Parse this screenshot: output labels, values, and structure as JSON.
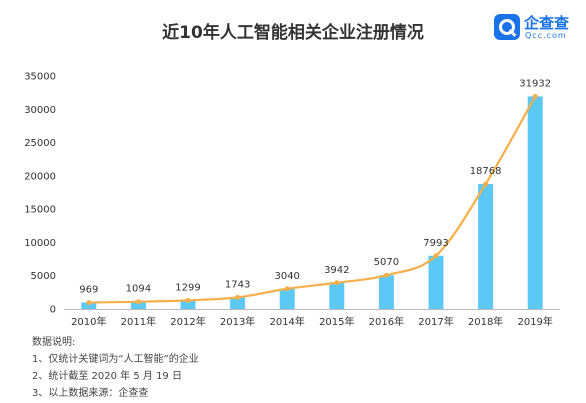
{
  "title": "近10年人工智能相关企业注册情况",
  "brand": {
    "name": "企查查",
    "domain": "Qcc.com",
    "color": "#1a73e8"
  },
  "notes": {
    "heading": "数据说明:",
    "lines": [
      "1、仅统计关键词为“人工智能”的企业",
      "2、统计截至 2020 年 5 月 19 日",
      "3、以上数据来源：企查查"
    ]
  },
  "chart_data": {
    "type": "bar",
    "categories": [
      "2010年",
      "2011年",
      "2012年",
      "2013年",
      "2014年",
      "2015年",
      "2016年",
      "2017年",
      "2018年",
      "2019年"
    ],
    "values": [
      969,
      1094,
      1299,
      1743,
      3040,
      3942,
      5070,
      7993,
      18768,
      31932
    ],
    "data_labels": [
      "969",
      "1094",
      "1299",
      "1743",
      "3040",
      "3942",
      "5070",
      "7993",
      "18768",
      "31932"
    ],
    "ylim": [
      0,
      35000
    ],
    "yticks": [
      0,
      5000,
      10000,
      15000,
      20000,
      25000,
      30000,
      35000
    ],
    "ytick_labels": [
      "0",
      "5000",
      "10000",
      "15000",
      "20000",
      "25000",
      "30000",
      "35000"
    ],
    "overlay": "smooth line through bar tops",
    "grid": false,
    "legend": "none",
    "colors": {
      "bar": "#5bc8f5",
      "line": "#f5b04b",
      "axis_text": "#333333"
    }
  }
}
